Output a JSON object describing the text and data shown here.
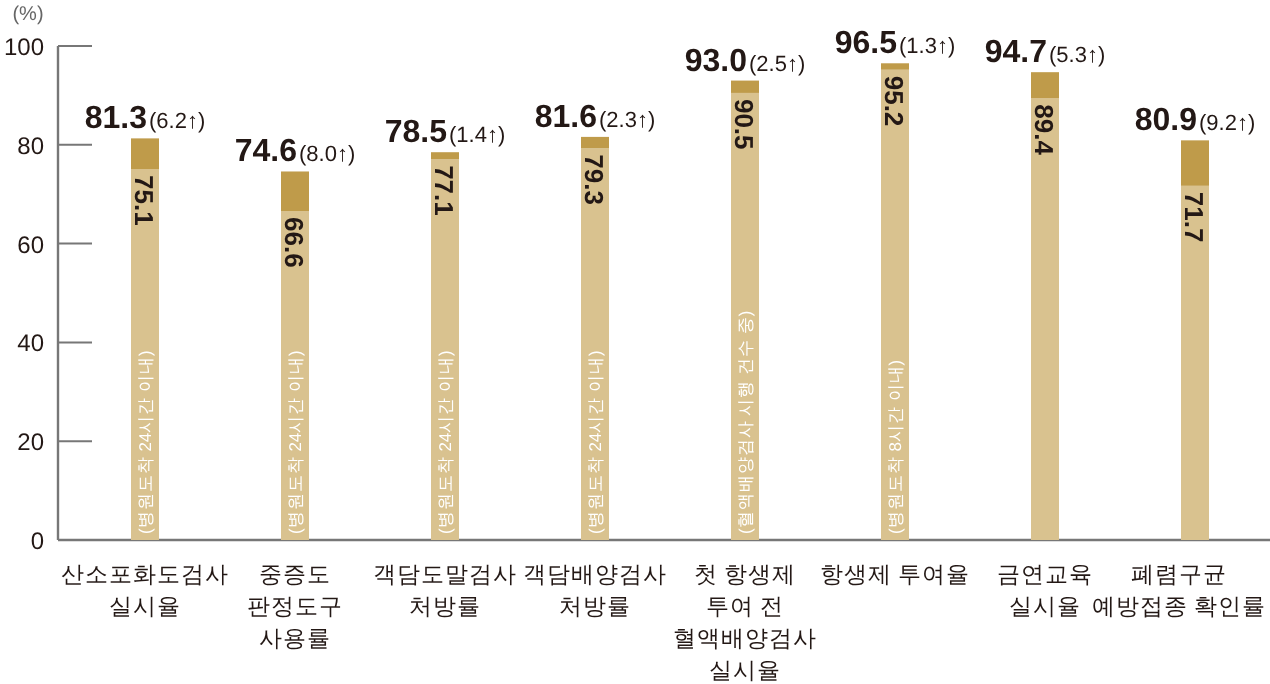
{
  "chart_data": {
    "type": "bar",
    "stacked": true,
    "ylabel": "(%)",
    "ylim": [
      0,
      100
    ],
    "yticks": [
      0,
      20,
      40,
      60,
      80,
      100
    ],
    "categories": [
      "산소포화도검사\n실시율",
      "중증도\n판정도구\n사용률",
      "객담도말검사\n처방률",
      "객담배양검사\n처방률",
      "첫 항생제\n투여 전\n혈액배양검사\n실시율",
      "항생제 투여율",
      "금연교육\n실시율",
      "폐렴구균\n예방접종 확인률"
    ],
    "series": [
      {
        "color": "#d9c28f",
        "values": [
          75.1,
          66.6,
          77.1,
          79.3,
          90.5,
          95.2,
          89.4,
          71.7
        ],
        "value_labels": [
          "75.1",
          "66.6",
          "77.1",
          "79.3",
          "90.5",
          "95.2",
          "89.4",
          "71.7"
        ]
      },
      {
        "color": "#bf9b4a",
        "values": [
          6.2,
          8.0,
          1.4,
          2.3,
          2.5,
          1.3,
          5.3,
          9.2
        ],
        "value_labels": [
          "(6.2↑)",
          "(8.0↑)",
          "(1.4↑)",
          "(2.3↑)",
          "(2.5↑)",
          "(1.3↑)",
          "(5.3↑)",
          "(9.2↑)"
        ]
      }
    ],
    "totals": [
      "81.3",
      "74.6",
      "78.5",
      "81.6",
      "93.0",
      "96.5",
      "94.7",
      "80.9"
    ],
    "annotations": [
      {
        "text": "(병원도착 24시간 이내)",
        "x": "산소포화도검사\n실시율",
        "y": 0
      },
      {
        "text": "(병원도착 24시간 이내)",
        "x": "중증도\n판정도구\n사용률",
        "y": 0
      },
      {
        "text": "(병원도착 24시간 이내)",
        "x": "객담도말검사\n처방률",
        "y": 0
      },
      {
        "text": "(병원도착 24시간 이내)",
        "x": "객담배양검사\n처방률",
        "y": 0
      },
      {
        "text": "(혈액배양검사 시행 건수 중)",
        "x": "첫 항생제\n투여 전\n혈액배양검사\n실시율",
        "y": 0
      },
      {
        "text": "(병원도착 8시간 이내)",
        "x": "항생제 투여율",
        "y": 0
      }
    ]
  }
}
